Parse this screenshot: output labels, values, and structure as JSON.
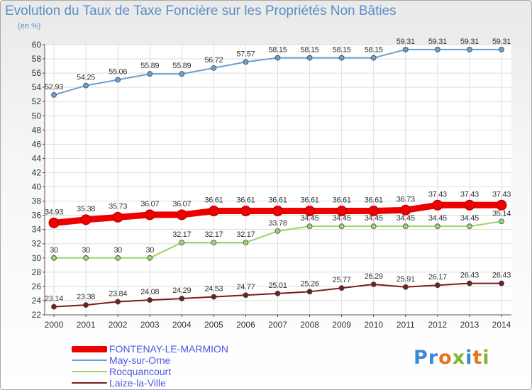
{
  "page": {
    "title": "Evolution du Taux de Taxe Foncière sur les Propriétés Non Bâties",
    "unit": "(en %)"
  },
  "logo": {
    "text": "Proxiti",
    "colors": [
      "#3c88d6",
      "#3c88d6",
      "#e8731a",
      "#7ab82e",
      "#3c88d6",
      "#e8731a",
      "#7ab82e"
    ]
  },
  "chart_data": {
    "type": "line",
    "x": [
      "2000",
      "2001",
      "2002",
      "2003",
      "2004",
      "2005",
      "2006",
      "2007",
      "2008",
      "2009",
      "2010",
      "2011",
      "2012",
      "2013",
      "2014"
    ],
    "ylim": [
      22,
      60
    ],
    "yticks": [
      22,
      24,
      26,
      28,
      30,
      32,
      34,
      36,
      38,
      40,
      42,
      44,
      46,
      48,
      50,
      52,
      54,
      56,
      58,
      60
    ],
    "grid": true,
    "legend_position": "bottom-left",
    "series": [
      {
        "name": "FONTENAY-LE-MARMION",
        "color": "#ee0000",
        "style": "bold",
        "values": [
          34.93,
          35.38,
          35.73,
          36.07,
          36.07,
          36.61,
          36.61,
          36.61,
          36.61,
          36.61,
          36.61,
          36.73,
          37.43,
          37.43,
          37.43
        ],
        "labels": [
          "34.93",
          "35.38",
          "35.73",
          "36.07",
          "36.07",
          "36.61",
          "36.61",
          "36.61",
          "36.61",
          "36.61",
          "36.61",
          "36.73",
          "37.43",
          "37.43",
          "37.43"
        ]
      },
      {
        "name": "May-sur-Orne",
        "color": "#6a9fd4",
        "style": "thin",
        "values": [
          52.93,
          54.25,
          55.06,
          55.89,
          55.89,
          56.72,
          57.57,
          58.15,
          58.15,
          58.15,
          58.15,
          59.31,
          59.31,
          59.31,
          59.31
        ],
        "labels": [
          "52.93",
          "54.25",
          "55.06",
          "55.89",
          "55.89",
          "56.72",
          "57.57",
          "58.15",
          "58.15",
          "58.15",
          "58.15",
          "59.31",
          "59.31",
          "59.31",
          "59.31"
        ]
      },
      {
        "name": "Rocquancourt",
        "color": "#99d56a",
        "style": "thin",
        "values": [
          30,
          30,
          30,
          30,
          32.17,
          32.17,
          32.17,
          33.78,
          34.45,
          34.45,
          34.45,
          34.45,
          34.45,
          34.45,
          35.14
        ],
        "labels": [
          "30",
          "30",
          "30",
          "30",
          "32.17",
          "32.17",
          "32.17",
          "33.78",
          "34.45",
          "34.45",
          "34.45",
          "34.45",
          "34.45",
          "34.45",
          "35.14"
        ]
      },
      {
        "name": "Laize-la-Ville",
        "color": "#7a1c1c",
        "style": "thin",
        "values": [
          23.14,
          23.38,
          23.84,
          24.08,
          24.29,
          24.53,
          24.77,
          25.01,
          25.26,
          25.77,
          26.29,
          25.91,
          26.17,
          26.43,
          26.43
        ],
        "labels": [
          "23.14",
          "23.38",
          "23.84",
          "24.08",
          "24.29",
          "24.53",
          "24.77",
          "25.01",
          "25.26",
          "25.77",
          "26.29",
          "25.91",
          "26.17",
          "26.43",
          "26.43"
        ]
      }
    ]
  }
}
